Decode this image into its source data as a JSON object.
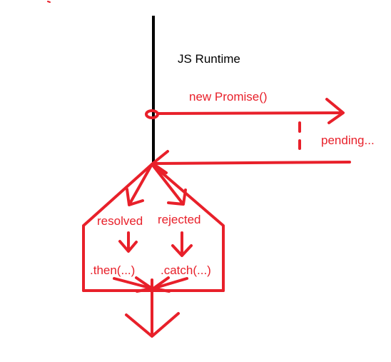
{
  "diagram": {
    "title": "JS Runtime",
    "labels": {
      "new_promise": "new Promise()",
      "pending": "pending...",
      "resolved": "resolved",
      "rejected": "rejected",
      "then": ".then(...)",
      "catch": ".catch(...)"
    },
    "colors": {
      "ink_red": "#e8202a",
      "ink_black": "#000000",
      "background": "#ffffff"
    }
  }
}
